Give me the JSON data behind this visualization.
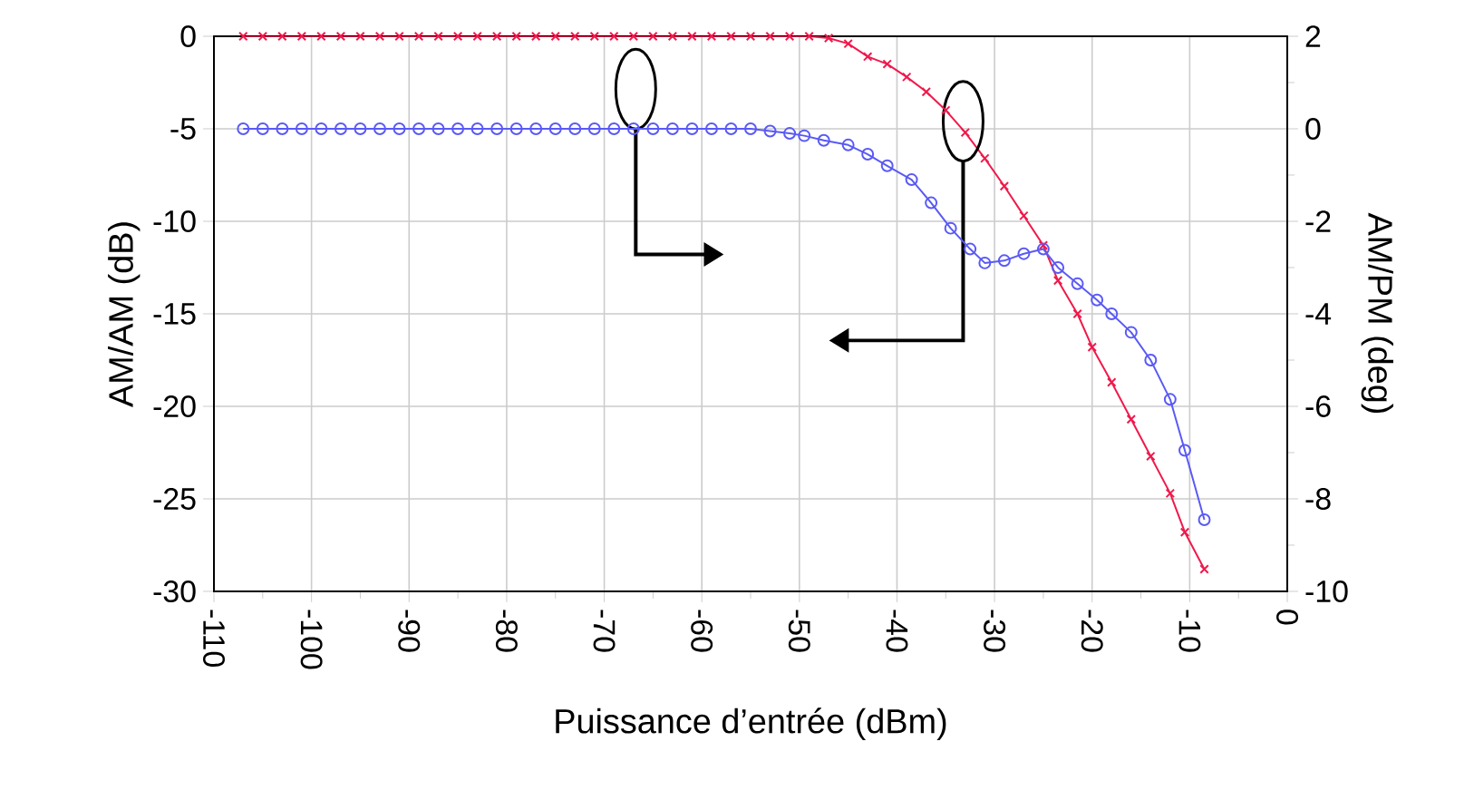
{
  "chart_data": {
    "type": "line",
    "xlabel": "Puissance d’entrée (dBm)",
    "ylabel": "AM/AM (dB)",
    "y2label": "AM/PM (deg)",
    "xlim": [
      -110,
      0
    ],
    "xticks": [
      -110,
      -100,
      -90,
      -80,
      -70,
      -60,
      -50,
      -40,
      -30,
      -20,
      -10,
      0
    ],
    "ylim": [
      -30,
      0
    ],
    "yticks": [
      -30,
      -25,
      -20,
      -15,
      -10,
      -5,
      0
    ],
    "y2lim": [
      -10,
      2
    ],
    "y2ticks": [
      -10,
      -8,
      -6,
      -4,
      -2,
      0,
      2
    ],
    "grid": true,
    "line_style": "solid",
    "series": [
      {
        "color": "#f0194b",
        "marker": "cross",
        "x": [
          -107,
          -105,
          -103,
          -101,
          -99,
          -97,
          -95,
          -93,
          -91,
          -89,
          -87,
          -85,
          -83,
          -81,
          -79,
          -77,
          -75,
          -73,
          -71,
          -69,
          -67,
          -65,
          -63,
          -61,
          -59,
          -57,
          -55,
          -53,
          -51,
          -49,
          -47,
          -45,
          -43,
          -41,
          -39,
          -37,
          -35,
          -33,
          -31,
          -29,
          -27,
          -25,
          -23.5,
          -21.5,
          -20,
          -18,
          -16,
          -14,
          -12,
          -10.5,
          -8.5
        ],
        "values": [
          0,
          0,
          0,
          0,
          0,
          0,
          0,
          0,
          0,
          0,
          0,
          0,
          0,
          0,
          0,
          0,
          0,
          0,
          0,
          0,
          0,
          0,
          0,
          0,
          0,
          0,
          0,
          0,
          0,
          0,
          -0.1,
          -0.4,
          -1.1,
          -1.5,
          -2.2,
          -3.0,
          -4.0,
          -5.2,
          -6.6,
          -8.1,
          -9.7,
          -11.3,
          -13.2,
          -15.0,
          -16.8,
          -18.7,
          -20.7,
          -22.7,
          -24.7,
          -26.8,
          -28.8
        ]
      },
      {
        "color": "#5a5af5",
        "marker": "circle",
        "axis": "y2",
        "x": [
          -107,
          -105,
          -103,
          -101,
          -99,
          -97,
          -95,
          -93,
          -91,
          -89,
          -87,
          -85,
          -83,
          -81,
          -79,
          -77,
          -75,
          -73,
          -71,
          -69,
          -67,
          -65,
          -63,
          -61,
          -59,
          -57,
          -55,
          -53,
          -51,
          -49.5,
          -47.5,
          -45,
          -43,
          -41,
          -38.5,
          -36.5,
          -34.5,
          -32.5,
          -31,
          -29,
          -27,
          -25,
          -23.5,
          -21.5,
          -19.5,
          -18,
          -16,
          -14,
          -12,
          -10.5,
          -8.5
        ],
        "values": [
          0,
          0,
          0,
          0,
          0,
          0,
          0,
          0,
          0,
          0,
          0,
          0,
          0,
          0,
          0,
          0,
          0,
          0,
          0,
          0,
          0,
          0,
          0,
          0,
          0,
          0,
          0,
          -0.05,
          -0.1,
          -0.15,
          -0.25,
          -0.35,
          -0.55,
          -0.8,
          -1.1,
          -1.6,
          -2.15,
          -2.6,
          -2.9,
          -2.85,
          -2.7,
          -2.6,
          -3.0,
          -3.35,
          -3.7,
          -4.0,
          -4.4,
          -5.0,
          -5.85,
          -6.95,
          -8.45
        ]
      }
    ]
  }
}
